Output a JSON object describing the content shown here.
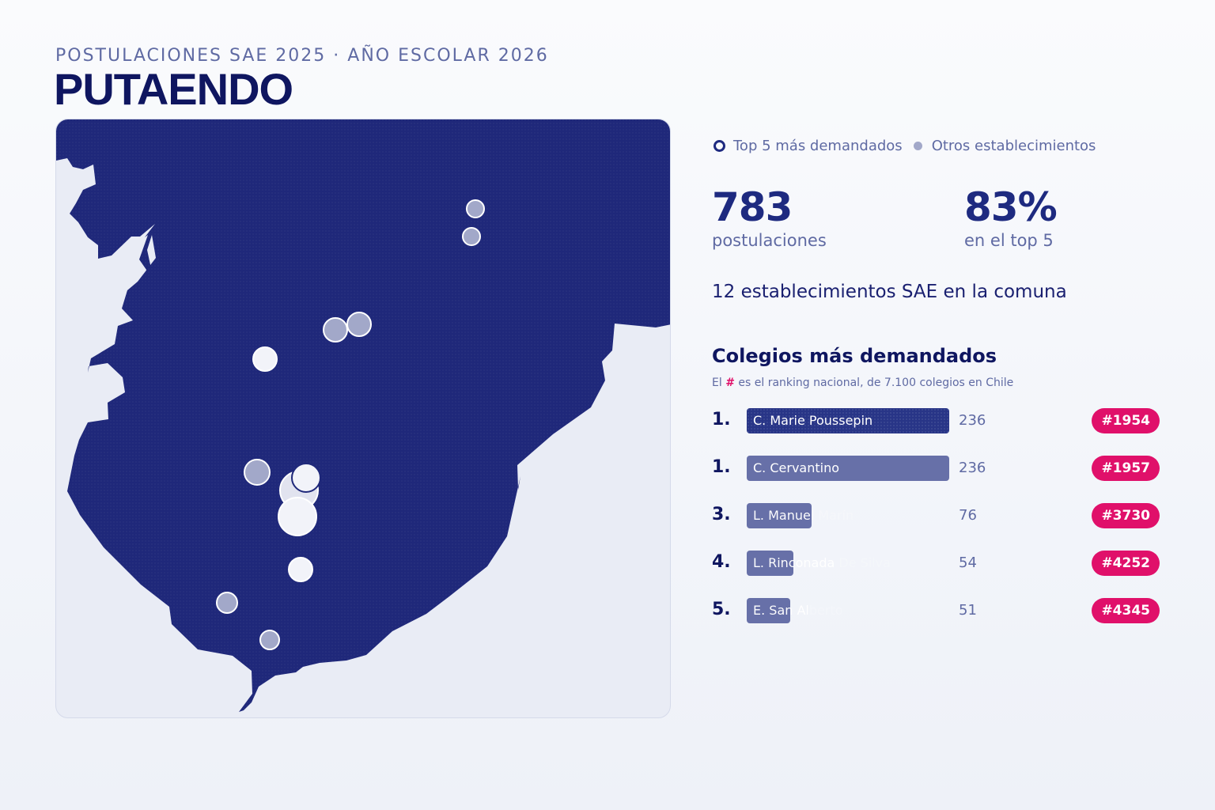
{
  "header": {
    "eyebrow": "POSTULACIONES SAE 2025 · AÑO ESCOLAR 2026",
    "title": "PUTAENDO"
  },
  "colors": {
    "commune_fill": "#1f287a",
    "background_land": "#e9ecf5",
    "accent_magenta": "#e0106a",
    "top_marker": "#ffffff",
    "other_marker": "#a2a8c9"
  },
  "legend": {
    "top5_label": "Top 5 más demandados",
    "others_label": "Otros establecimientos"
  },
  "kpis": {
    "applications_value": "783",
    "applications_label": "postulaciones",
    "top5_share_value": "83%",
    "top5_share_label": "en el top 5"
  },
  "schools_count_text": "12 establecimientos SAE en la comuna",
  "ranking": {
    "title": "Colegios más demandados",
    "subtitle_prefix": "El",
    "subtitle_hash": "#",
    "subtitle_rest": "es el ranking nacional, de 7.100 colegios en Chile",
    "max_value": 236,
    "items": [
      {
        "rank": "1.",
        "name": "C. Marie Poussepin",
        "value": 236,
        "value_text": "236",
        "national_rank": "#1954"
      },
      {
        "rank": "1.",
        "name": "C. Cervantino",
        "value": 236,
        "value_text": "236",
        "national_rank": "#1957"
      },
      {
        "rank": "3.",
        "name": "L. Manuel Marín",
        "value": 76,
        "value_text": "76",
        "national_rank": "#3730"
      },
      {
        "rank": "4.",
        "name": "L. Rinconada De Silva",
        "value": 54,
        "value_text": "54",
        "national_rank": "#4252"
      },
      {
        "rank": "5.",
        "name": "E. San Alberto",
        "value": 51,
        "value_text": "51",
        "national_rank": "#4345"
      }
    ]
  }
}
